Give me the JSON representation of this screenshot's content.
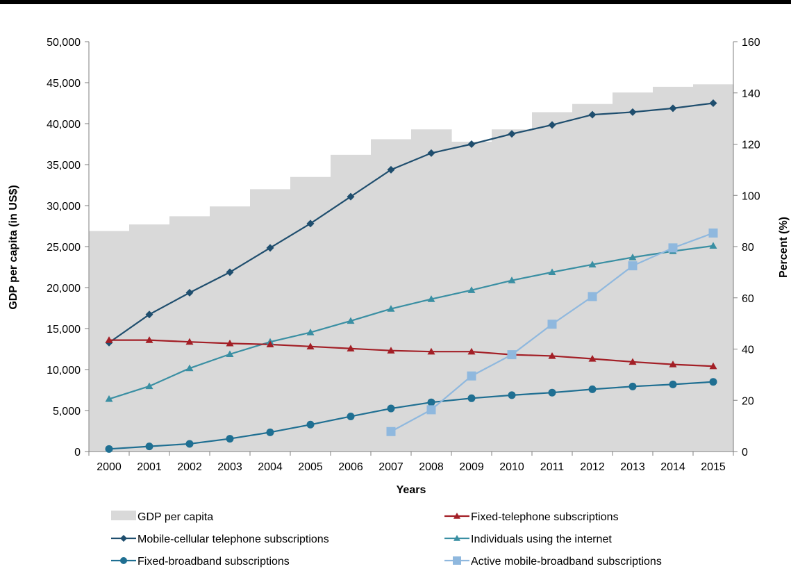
{
  "chart_data": {
    "type": "bar",
    "categories": [
      "2000",
      "2001",
      "2002",
      "2003",
      "2004",
      "2005",
      "2006",
      "2007",
      "2008",
      "2009",
      "2010",
      "2011",
      "2012",
      "2013",
      "2014",
      "2015"
    ],
    "gdp_series": {
      "name": "GDP per capita",
      "axis": "left",
      "color": "#d9d9d9",
      "values": [
        26900,
        27700,
        28700,
        29900,
        32000,
        33500,
        36200,
        38100,
        39300,
        37800,
        39300,
        41400,
        42400,
        43800,
        44500,
        44800
      ]
    },
    "line_series": [
      {
        "name": "Mobile-cellular telephone subscriptions",
        "color": "#1f4e6e",
        "marker": "diamond",
        "values": [
          42.5,
          53.5,
          62.0,
          70.0,
          79.5,
          89.0,
          99.5,
          110.0,
          116.5,
          120.0,
          124.0,
          127.5,
          131.5,
          132.5,
          134.0,
          136.0
        ]
      },
      {
        "name": "Fixed-telephone subscriptions",
        "color": "#a31f26",
        "marker": "triangle",
        "values": [
          43.5,
          43.5,
          42.8,
          42.2,
          41.8,
          41.0,
          40.2,
          39.4,
          39.0,
          39.0,
          37.8,
          37.3,
          36.2,
          35.0,
          34.0,
          33.3
        ]
      },
      {
        "name": "Individuals using the internet",
        "color": "#3a8fa3",
        "marker": "triangle",
        "values": [
          20.5,
          25.5,
          32.5,
          38.0,
          42.8,
          46.5,
          51.0,
          55.7,
          59.5,
          63.0,
          66.8,
          70.0,
          73.0,
          75.8,
          78.2,
          80.3
        ]
      },
      {
        "name": "Fixed-broadband subscriptions",
        "color": "#1f6f92",
        "marker": "circle",
        "values": [
          1.0,
          2.0,
          3.0,
          5.0,
          7.5,
          10.5,
          13.7,
          16.8,
          19.2,
          20.8,
          22.0,
          23.0,
          24.3,
          25.4,
          26.2,
          27.2
        ]
      },
      {
        "name": "Active mobile-broadband subscriptions",
        "color": "#8fb8de",
        "marker": "square",
        "values": [
          null,
          null,
          null,
          null,
          null,
          null,
          null,
          7.8,
          16.3,
          29.5,
          37.8,
          49.7,
          60.5,
          72.5,
          79.5,
          85.3
        ]
      }
    ],
    "y_left": {
      "label": "GDP per capita (in US$)",
      "min": 0,
      "max": 50000,
      "step": 5000,
      "ticks": [
        "0",
        "5,000",
        "10,000",
        "15,000",
        "20,000",
        "25,000",
        "30,000",
        "35,000",
        "40,000",
        "45,000",
        "50,000"
      ]
    },
    "y_right": {
      "label": "Percent (%)",
      "min": 0,
      "max": 160,
      "step": 20,
      "ticks": [
        "0",
        "20",
        "40",
        "60",
        "80",
        "100",
        "120",
        "140",
        "160"
      ]
    },
    "xlabel": "Years",
    "grid": false,
    "legend_position": "bottom",
    "legend": [
      {
        "label": "GDP per capita",
        "ref": "gdp"
      },
      {
        "label": "Fixed-telephone subscriptions",
        "ref": "Fixed-telephone subscriptions"
      },
      {
        "label": "Mobile-cellular telephone subscriptions",
        "ref": "Mobile-cellular telephone subscriptions"
      },
      {
        "label": "Individuals using the internet",
        "ref": "Individuals using the internet"
      },
      {
        "label": "Fixed-broadband subscriptions",
        "ref": "Fixed-broadband subscriptions"
      },
      {
        "label": "Active mobile-broadband subscriptions",
        "ref": "Active mobile-broadband subscriptions"
      }
    ]
  }
}
